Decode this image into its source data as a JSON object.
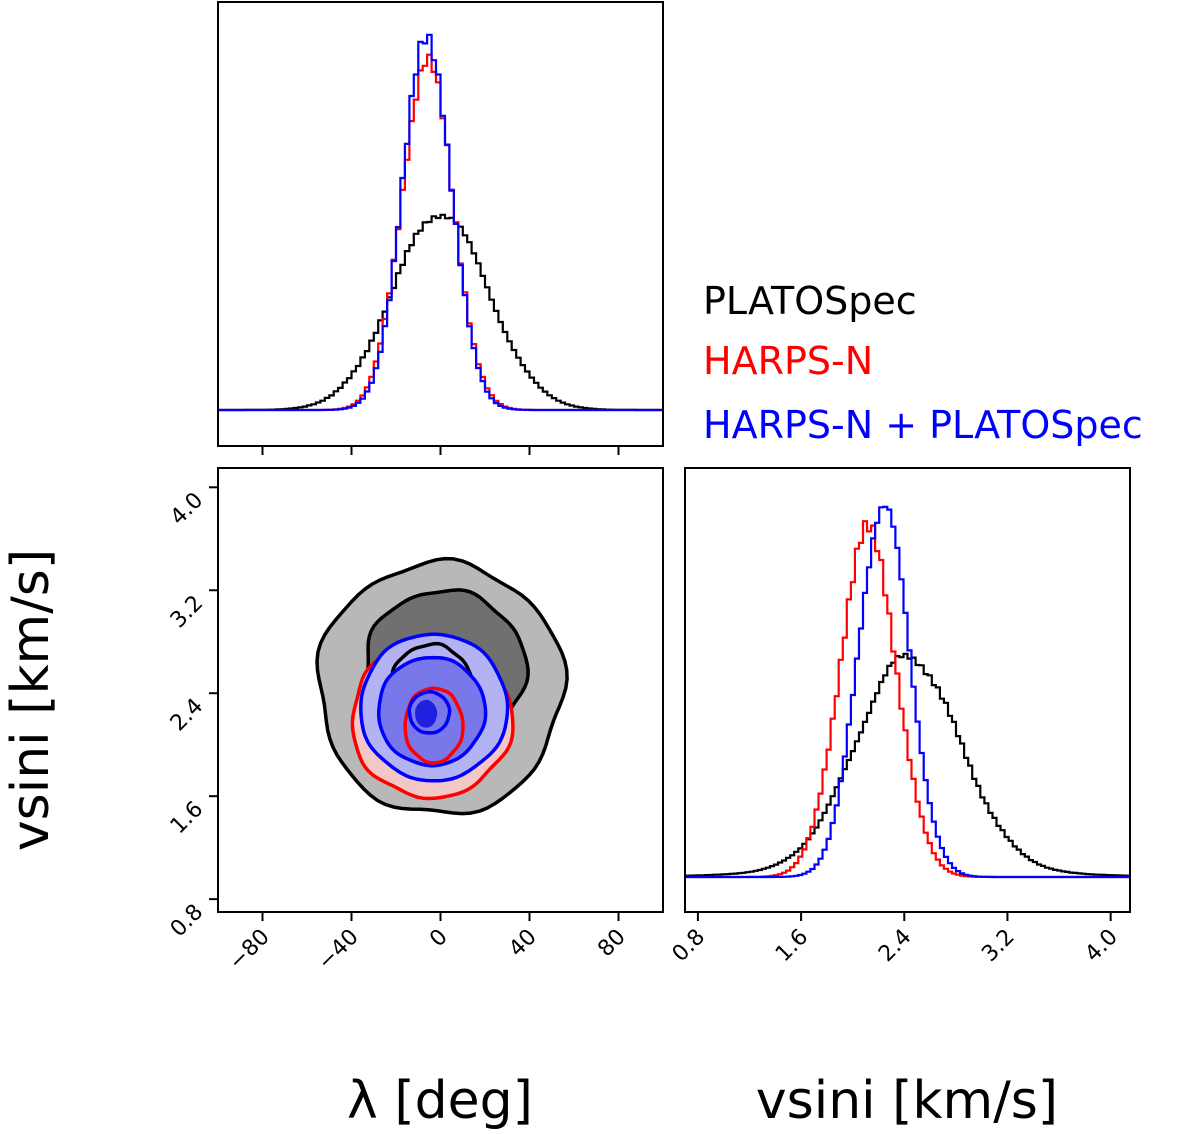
{
  "chart_data": {
    "type": "corner",
    "parameters": [
      "lambda",
      "vsini"
    ],
    "x_label_lambda": "λ [deg]",
    "x_label_vsini": "vsini [km/s]",
    "y_label_vsini": "vsini [km/s]",
    "lambda_range": [
      -100,
      100
    ],
    "lambda_ticks": [
      "−80",
      "−40",
      "0",
      "40",
      "80"
    ],
    "lambda_tick_values": [
      -80,
      -40,
      0,
      40,
      80
    ],
    "vsini_range": [
      0.7,
      4.15
    ],
    "vsini_ticks": [
      "0.8",
      "1.6",
      "2.4",
      "3.2",
      "4.0"
    ],
    "vsini_tick_values": [
      0.8,
      1.6,
      2.4,
      3.2,
      4.0
    ],
    "legend": {
      "placement": "right of top histogram",
      "entries": [
        {
          "label": "PLATOSpec",
          "color": "#000000"
        },
        {
          "label": "HARPS-N",
          "color": "#ff0000"
        },
        {
          "label": "HARPS-N + PLATOSpec",
          "color": "#0000ff"
        }
      ]
    },
    "series": [
      {
        "name": "PLATOSpec",
        "color": "#000000",
        "lambda_mean": 0,
        "lambda_sd": 21.5,
        "lambda_peak": 0.53,
        "vsini_mean": 2.43,
        "vsini_sd": 0.4,
        "vsini_peak": 0.57,
        "contour_center": [
          -3,
          2.42
        ],
        "contour_fill": [
          "#b8b8b8",
          "#707070",
          "#2a2a2a"
        ]
      },
      {
        "name": "HARPS-N",
        "color": "#ff0000",
        "lambda_mean": -6,
        "lambda_sd": 11.5,
        "lambda_peak": 0.94,
        "vsini_mean": 2.12,
        "vsini_sd": 0.22,
        "vsini_peak": 0.93,
        "contour_center": [
          -6,
          2.17
        ],
        "contour_fill": [
          "#f4c7c7",
          "#ee9a9a",
          "#e06060"
        ]
      },
      {
        "name": "HARPS-N + PLATOSpec",
        "color": "#0000ff",
        "lambda_mean": -6,
        "lambda_sd": 11.0,
        "lambda_peak": 1.0,
        "vsini_mean": 2.24,
        "vsini_sd": 0.2,
        "vsini_peak": 1.0,
        "contour_center": [
          -6,
          2.24
        ],
        "contour_fill": [
          "#b3b3f3",
          "#7878ea",
          "#2020e0"
        ]
      }
    ]
  }
}
